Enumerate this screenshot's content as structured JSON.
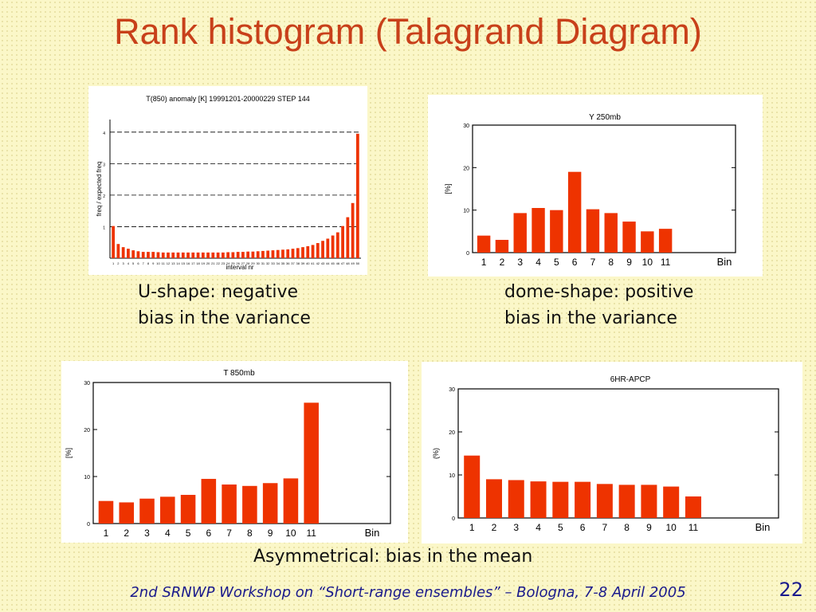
{
  "slide": {
    "title": "Rank histogram (Talagrand Diagram)",
    "captions": {
      "u_shape_line1": "U-shape: negative",
      "u_shape_line2": "bias in the variance",
      "dome_line1": "dome-shape: positive",
      "dome_line2": "bias in the variance",
      "asym": "Asymmetrical: bias in the mean"
    },
    "footer": "2nd SRNWP Workshop on “Short-range ensembles” – Bologna, 7-8 April 2005",
    "page_number": "22"
  },
  "colors": {
    "title": "#c8401a",
    "bar": "#ee3300",
    "footer": "#1a1a8c"
  },
  "chart_data": [
    {
      "type": "bar",
      "title": "T(850) anomaly [K]     19991201-20000229  STEP 144",
      "xlabel": "interval nr",
      "ylabel": "freq / expected freq",
      "ylim": [
        0,
        4.4
      ],
      "yticks": [
        1,
        2,
        3,
        4
      ],
      "grid": "dashed-horizontal",
      "values": [
        1.02,
        0.45,
        0.35,
        0.3,
        0.25,
        0.22,
        0.2,
        0.2,
        0.2,
        0.19,
        0.18,
        0.18,
        0.18,
        0.18,
        0.18,
        0.18,
        0.18,
        0.18,
        0.18,
        0.18,
        0.18,
        0.18,
        0.18,
        0.19,
        0.19,
        0.2,
        0.2,
        0.21,
        0.21,
        0.22,
        0.23,
        0.24,
        0.25,
        0.26,
        0.27,
        0.28,
        0.3,
        0.32,
        0.35,
        0.38,
        0.42,
        0.48,
        0.55,
        0.62,
        0.72,
        0.82,
        1.02,
        1.3,
        1.75,
        3.95
      ]
    },
    {
      "type": "bar",
      "title": "Y 250mb",
      "ylabel": "[%]",
      "xlabel": "Bin",
      "categories": [
        "1",
        "2",
        "3",
        "4",
        "5",
        "6",
        "7",
        "8",
        "9",
        "10",
        "11"
      ],
      "values": [
        4,
        3,
        9.3,
        10.5,
        10,
        19,
        10.2,
        9.3,
        7.3,
        5,
        5.6
      ],
      "ylim": [
        0,
        30
      ],
      "yticks": [
        "0",
        "10",
        "20",
        "30"
      ]
    },
    {
      "type": "bar",
      "title": "T 850mb",
      "ylabel": "[%]",
      "xlabel": "Bin",
      "categories": [
        "1",
        "2",
        "3",
        "4",
        "5",
        "6",
        "7",
        "8",
        "9",
        "10",
        "11"
      ],
      "values": [
        4.8,
        4.5,
        5.3,
        5.7,
        6.1,
        9.5,
        8.3,
        8,
        8.6,
        9.6,
        25.7
      ],
      "ylim": [
        0,
        30
      ],
      "yticks": [
        "0",
        "10",
        "20",
        "30"
      ]
    },
    {
      "type": "bar",
      "title": "6HR-APCP",
      "ylabel": "(%)",
      "xlabel": "Bin",
      "categories": [
        "1",
        "2",
        "3",
        "4",
        "5",
        "6",
        "7",
        "8",
        "9",
        "10",
        "11"
      ],
      "values": [
        14.5,
        9,
        8.8,
        8.5,
        8.4,
        8.4,
        7.9,
        7.7,
        7.7,
        7.3,
        5
      ],
      "ylim": [
        0,
        30
      ],
      "yticks": [
        "0",
        "10",
        "20",
        "30"
      ]
    }
  ]
}
